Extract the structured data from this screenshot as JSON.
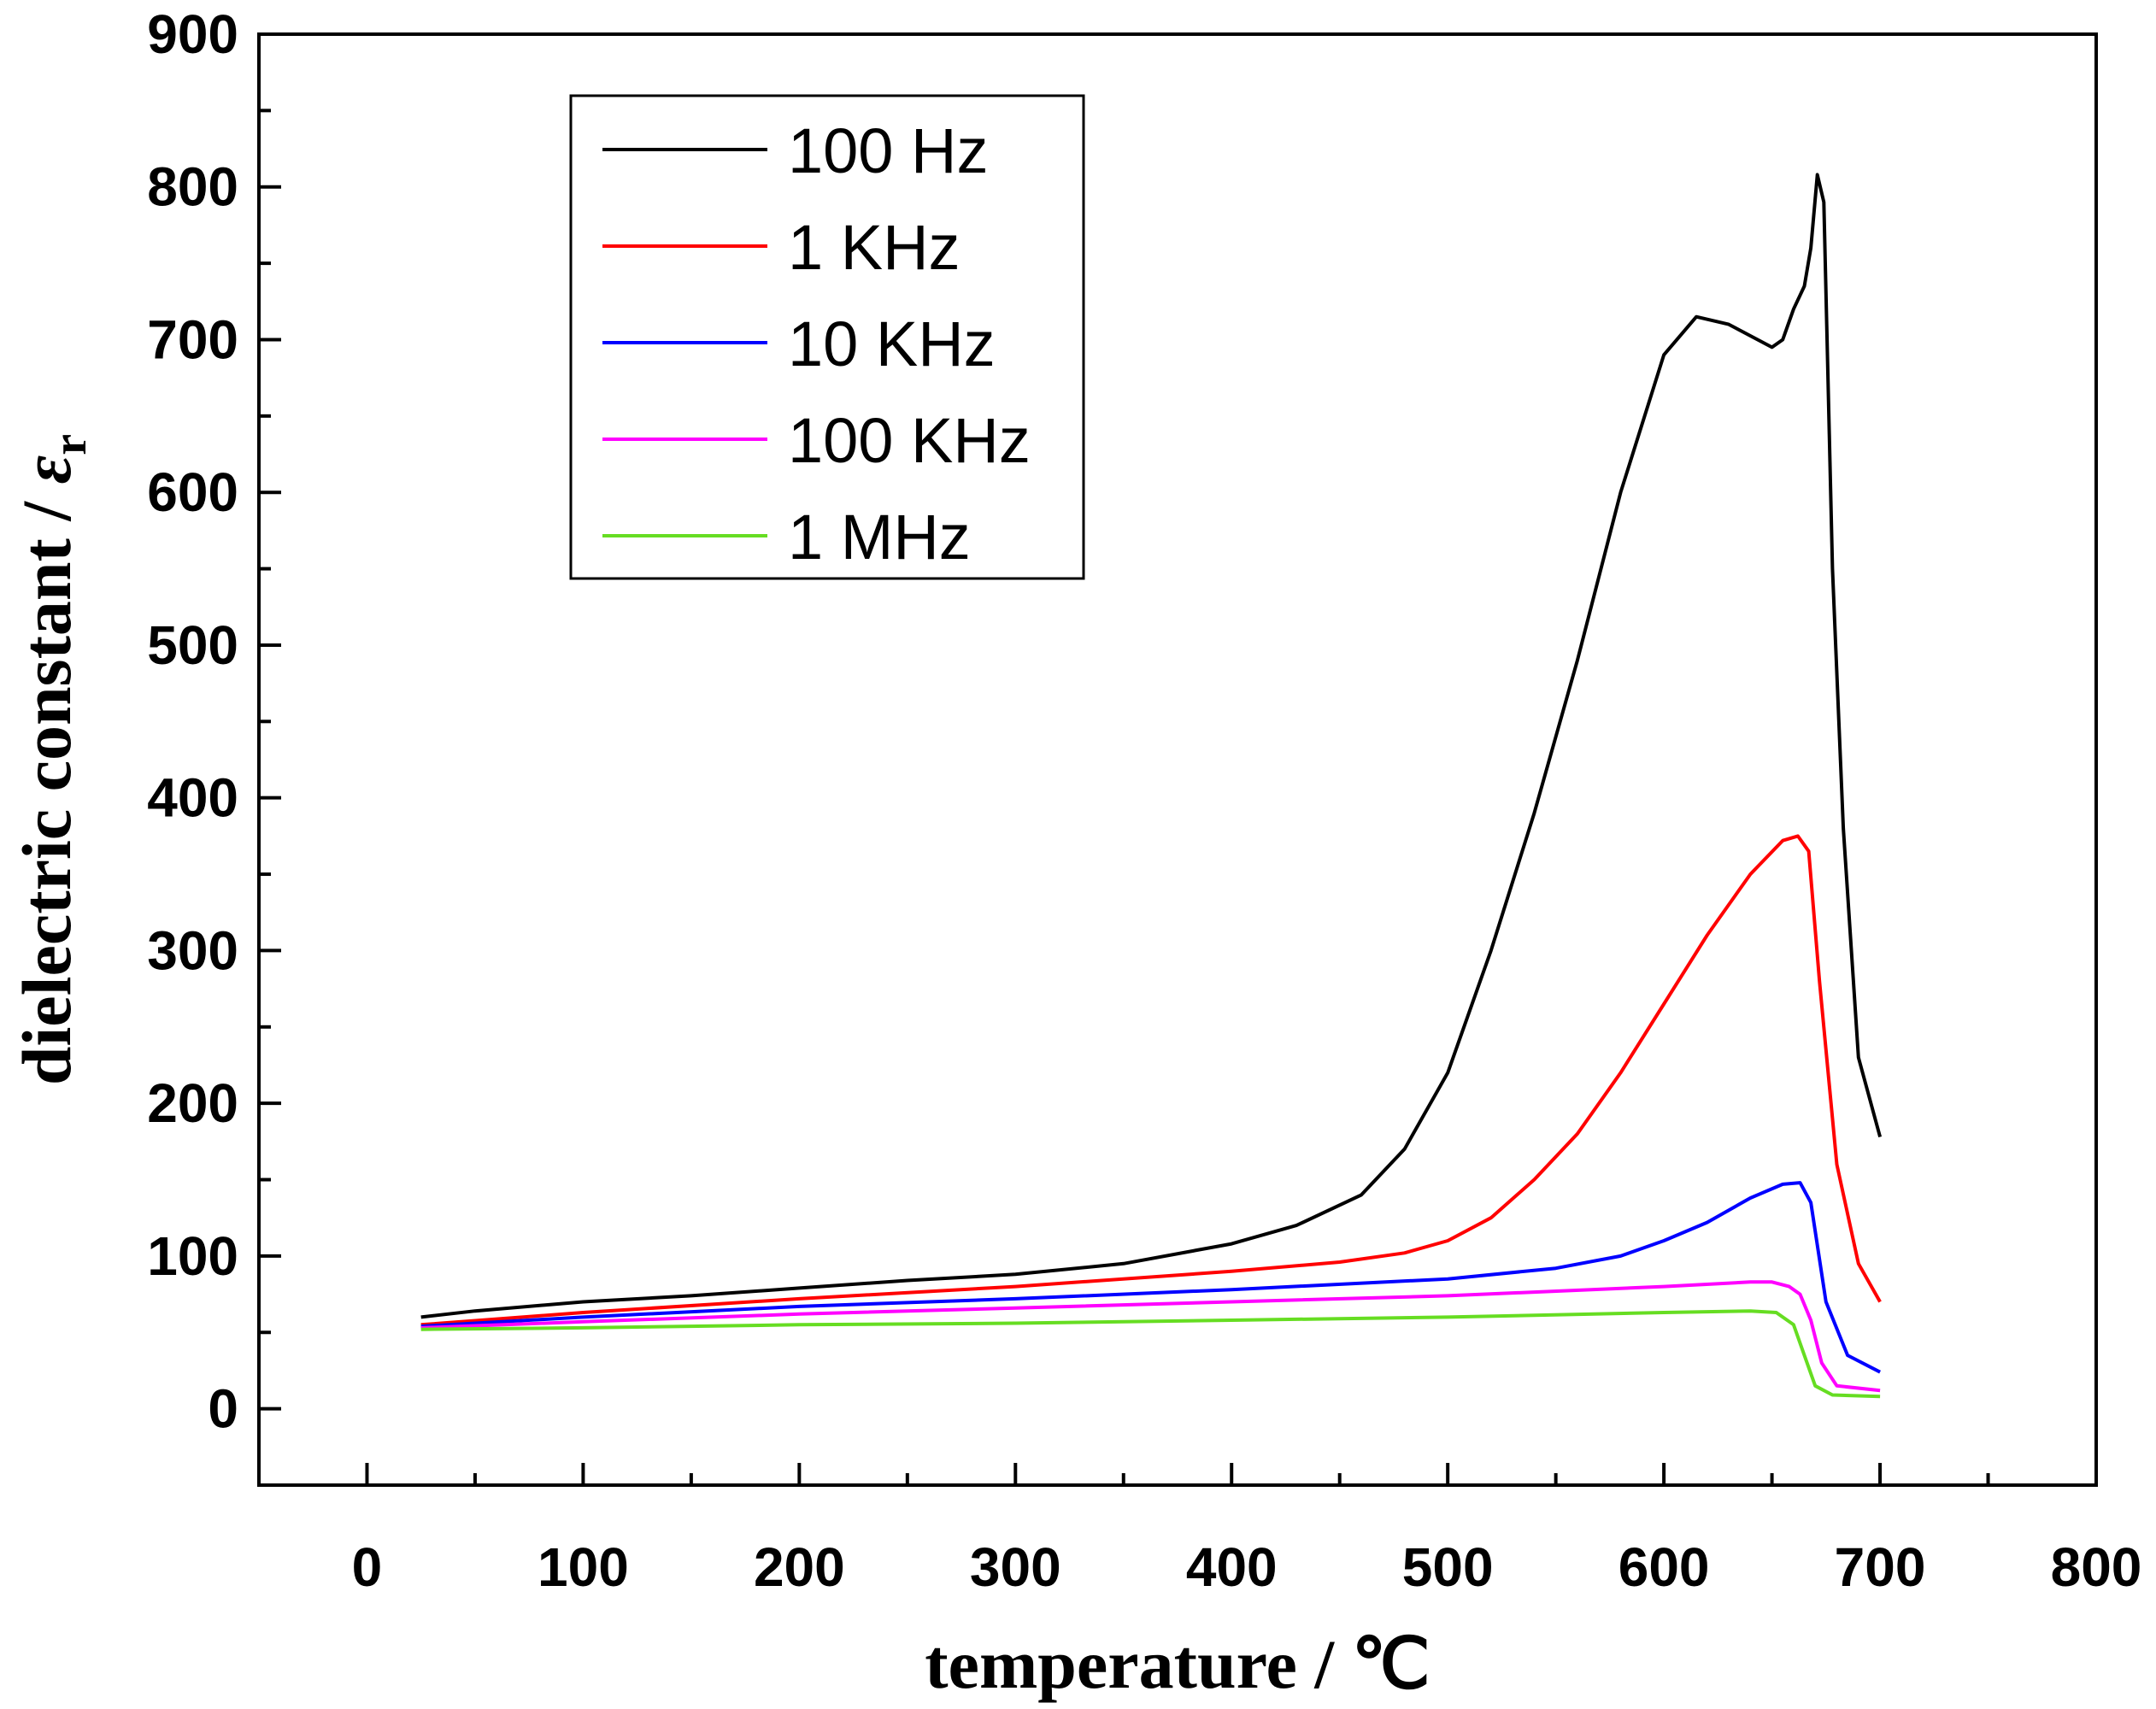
{
  "chart_data": {
    "type": "line",
    "title": "",
    "xlabel": "temperature / ℃",
    "ylabel_main": "dielectric constant / ",
    "ylabel_symbol": "ε",
    "ylabel_sub": "r",
    "xlim": [
      -50,
      800
    ],
    "ylim": [
      -50,
      900
    ],
    "xticks": [
      0,
      100,
      200,
      300,
      400,
      500,
      600,
      700,
      800
    ],
    "xtick_labels": [
      "0",
      "100",
      "200",
      "300",
      "400",
      "500",
      "600",
      "700",
      "800"
    ],
    "yticks": [
      0,
      100,
      200,
      300,
      400,
      500,
      600,
      700,
      800,
      900
    ],
    "ytick_labels": [
      "0",
      "100",
      "200",
      "300",
      "400",
      "500",
      "600",
      "700",
      "800",
      "900"
    ],
    "legend_position": "top-left",
    "series": [
      {
        "name": "100 Hz",
        "color": "#000000",
        "x": [
          25,
          50,
          100,
          150,
          200,
          250,
          300,
          350,
          400,
          430,
          460,
          480,
          500,
          520,
          540,
          560,
          580,
          600,
          615,
          630,
          650,
          655,
          660,
          665,
          668,
          671,
          674,
          678,
          683,
          690,
          700
        ],
        "y": [
          60,
          64,
          70,
          74,
          79,
          84,
          88,
          95,
          108,
          120,
          140,
          170,
          220,
          300,
          390,
          490,
          600,
          690,
          715,
          710,
          695,
          700,
          720,
          735,
          760,
          808,
          790,
          550,
          380,
          230,
          178
        ]
      },
      {
        "name": "1 KHz",
        "color": "#ff0000",
        "x": [
          25,
          100,
          200,
          300,
          400,
          450,
          480,
          500,
          520,
          540,
          560,
          580,
          600,
          620,
          640,
          655,
          662,
          667,
          672,
          680,
          690,
          700
        ],
        "y": [
          55,
          63,
          72,
          80,
          90,
          96,
          102,
          110,
          125,
          150,
          180,
          220,
          265,
          310,
          350,
          372,
          375,
          365,
          280,
          160,
          95,
          70
        ]
      },
      {
        "name": "10 KHz",
        "color": "#0000ff",
        "x": [
          25,
          100,
          200,
          300,
          400,
          500,
          550,
          580,
          600,
          620,
          640,
          655,
          663,
          668,
          675,
          685,
          700
        ],
        "y": [
          54,
          60,
          67,
          72,
          78,
          85,
          92,
          100,
          110,
          122,
          138,
          147,
          148,
          135,
          70,
          35,
          24
        ]
      },
      {
        "name": "100 KHz",
        "color": "#ff00ff",
        "x": [
          25,
          100,
          200,
          300,
          400,
          500,
          600,
          640,
          650,
          658,
          663,
          668,
          673,
          680,
          700
        ],
        "y": [
          53,
          57,
          62,
          66,
          70,
          74,
          80,
          83,
          83,
          80,
          75,
          58,
          30,
          15,
          12
        ]
      },
      {
        "name": "1 MHz",
        "color": "#66dd22",
        "x": [
          25,
          100,
          200,
          300,
          400,
          500,
          600,
          640,
          652,
          660,
          665,
          670,
          678,
          700
        ],
        "y": [
          52,
          53,
          55,
          56,
          58,
          60,
          63,
          64,
          63,
          55,
          35,
          15,
          9,
          8
        ]
      }
    ]
  }
}
